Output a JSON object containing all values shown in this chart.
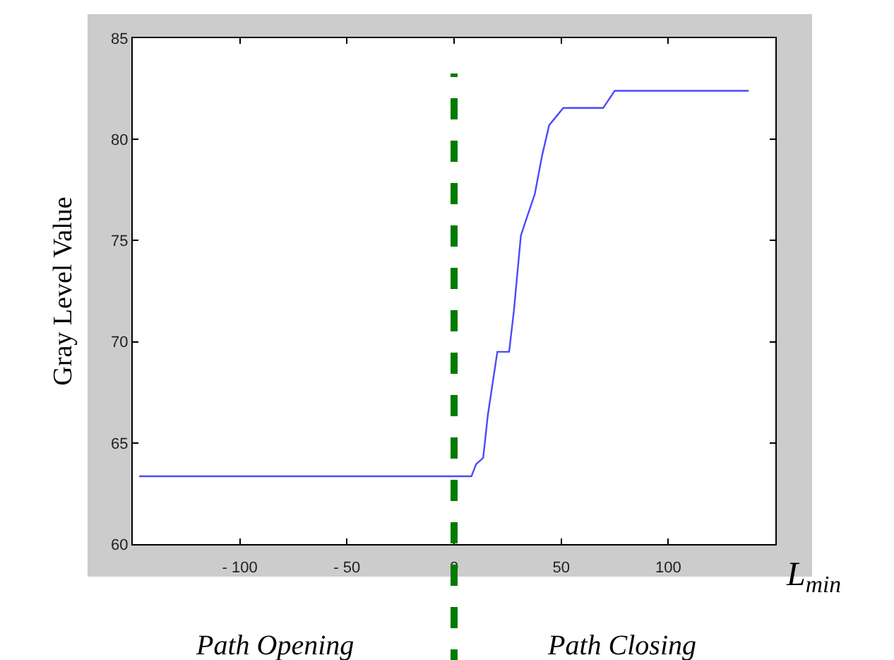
{
  "chart_data": {
    "type": "line",
    "xlabel": "L$_{min}$",
    "ylabel": "Gray Level Value",
    "x": [
      -147,
      8.1,
      10.3,
      13.6,
      15.8,
      20.2,
      25.7,
      27.9,
      31.2,
      33.4,
      37.7,
      41.1,
      44.4,
      51,
      69.6,
      75,
      137.5
    ],
    "series": [
      {
        "color": "#4a4aff",
        "values": [
          63.35,
          63.35,
          63.95,
          64.26,
          66.4,
          69.5,
          69.5,
          71.5,
          75.25,
          75.95,
          77.3,
          79.2,
          80.7,
          81.55,
          81.55,
          82.4,
          82.4
        ]
      }
    ],
    "xlim": [
      -150,
      150
    ],
    "xticks": [
      {
        "value": -100,
        "label": "- 100"
      },
      {
        "value": -50,
        "label": "- 50"
      },
      0,
      50,
      100
    ],
    "ylim": [
      60,
      85
    ],
    "yticks": [
      60,
      65,
      70,
      75,
      80,
      85
    ],
    "ref_lines": [
      {
        "axis": "x",
        "value": 0,
        "color": "#007a00",
        "line_style": "dashed"
      }
    ],
    "annotations": [
      "Path Opening",
      "Path Closing"
    ],
    "grid": false,
    "marker": "none",
    "line_style": "solid"
  }
}
